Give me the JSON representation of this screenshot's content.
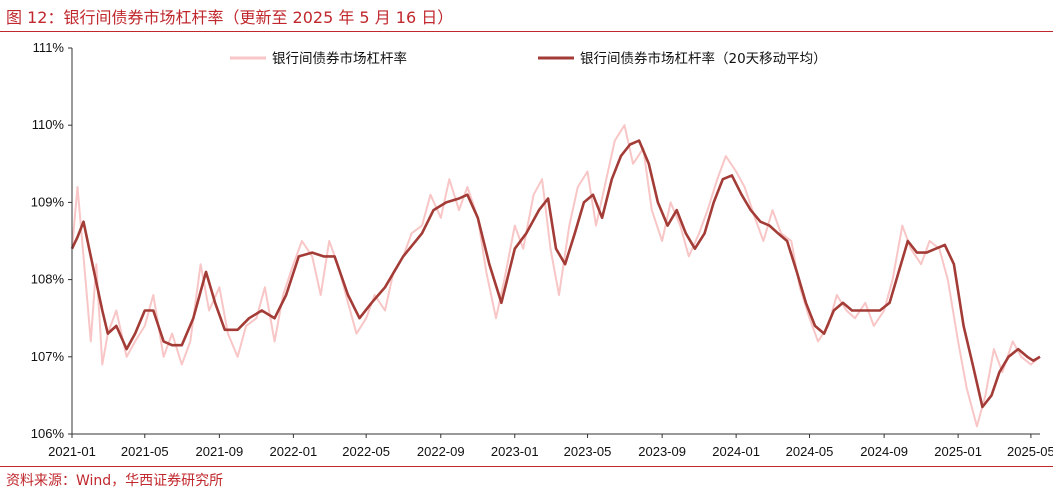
{
  "title": "图 12：银行间债券市场杠杆率（更新至 2025 年 5 月 16 日）",
  "source": "资料来源：Wind，华西证券研究所",
  "colors": {
    "accent": "#c0282d",
    "raw_line": "#f8c6c6",
    "ma_line": "#a33b36"
  },
  "chart_data": {
    "type": "line",
    "title": "",
    "xlabel": "",
    "ylabel": "",
    "ylim": [
      106,
      111
    ],
    "y_ticks": [
      "106%",
      "107%",
      "108%",
      "109%",
      "110%",
      "111%"
    ],
    "x_ticks": [
      "2021-01",
      "2021-05",
      "2021-09",
      "2022-01",
      "2022-05",
      "2022-09",
      "2023-01",
      "2023-05",
      "2023-09",
      "2024-01",
      "2024-05",
      "2024-09",
      "2025-01",
      "2025-05"
    ],
    "x_range": [
      "2021-01-01",
      "2025-05-16"
    ],
    "legend_position": "top",
    "series": [
      {
        "name": "银行间债券市场杠杆率",
        "role": "raw",
        "points": [
          [
            "2021-01-01",
            108.4
          ],
          [
            "2021-01-10",
            109.2
          ],
          [
            "2021-01-20",
            108.3
          ],
          [
            "2021-02-01",
            107.2
          ],
          [
            "2021-02-10",
            108.2
          ],
          [
            "2021-02-20",
            106.9
          ],
          [
            "2021-03-01",
            107.3
          ],
          [
            "2021-03-15",
            107.6
          ],
          [
            "2021-04-01",
            107.0
          ],
          [
            "2021-04-15",
            107.2
          ],
          [
            "2021-05-01",
            107.4
          ],
          [
            "2021-05-15",
            107.8
          ],
          [
            "2021-06-01",
            107.0
          ],
          [
            "2021-06-15",
            107.3
          ],
          [
            "2021-07-01",
            106.9
          ],
          [
            "2021-07-15",
            107.2
          ],
          [
            "2021-08-01",
            108.2
          ],
          [
            "2021-08-15",
            107.6
          ],
          [
            "2021-09-01",
            107.9
          ],
          [
            "2021-09-15",
            107.3
          ],
          [
            "2021-10-01",
            107.0
          ],
          [
            "2021-10-15",
            107.4
          ],
          [
            "2021-11-01",
            107.5
          ],
          [
            "2021-11-15",
            107.9
          ],
          [
            "2021-12-01",
            107.2
          ],
          [
            "2021-12-15",
            107.8
          ],
          [
            "2022-01-01",
            108.2
          ],
          [
            "2022-01-15",
            108.5
          ],
          [
            "2022-02-01",
            108.3
          ],
          [
            "2022-02-15",
            107.8
          ],
          [
            "2022-03-01",
            108.5
          ],
          [
            "2022-03-15",
            108.2
          ],
          [
            "2022-04-01",
            107.7
          ],
          [
            "2022-04-15",
            107.3
          ],
          [
            "2022-05-01",
            107.5
          ],
          [
            "2022-05-15",
            107.8
          ],
          [
            "2022-06-01",
            107.6
          ],
          [
            "2022-06-15",
            108.1
          ],
          [
            "2022-07-01",
            108.3
          ],
          [
            "2022-07-15",
            108.6
          ],
          [
            "2022-08-01",
            108.7
          ],
          [
            "2022-08-15",
            109.1
          ],
          [
            "2022-09-01",
            108.8
          ],
          [
            "2022-09-15",
            109.3
          ],
          [
            "2022-10-01",
            108.9
          ],
          [
            "2022-10-15",
            109.2
          ],
          [
            "2022-11-01",
            108.8
          ],
          [
            "2022-11-15",
            108.1
          ],
          [
            "2022-12-01",
            107.5
          ],
          [
            "2022-12-15",
            108.0
          ],
          [
            "2023-01-01",
            108.7
          ],
          [
            "2023-01-15",
            108.4
          ],
          [
            "2023-02-01",
            109.1
          ],
          [
            "2023-02-15",
            109.3
          ],
          [
            "2023-03-01",
            108.4
          ],
          [
            "2023-03-15",
            107.8
          ],
          [
            "2023-04-01",
            108.7
          ],
          [
            "2023-04-15",
            109.2
          ],
          [
            "2023-05-01",
            109.4
          ],
          [
            "2023-05-15",
            108.7
          ],
          [
            "2023-06-01",
            109.3
          ],
          [
            "2023-06-15",
            109.8
          ],
          [
            "2023-07-01",
            110.0
          ],
          [
            "2023-07-15",
            109.5
          ],
          [
            "2023-08-01",
            109.7
          ],
          [
            "2023-08-15",
            108.9
          ],
          [
            "2023-09-01",
            108.5
          ],
          [
            "2023-09-15",
            109.0
          ],
          [
            "2023-10-01",
            108.7
          ],
          [
            "2023-10-15",
            108.3
          ],
          [
            "2023-11-01",
            108.6
          ],
          [
            "2023-11-15",
            108.9
          ],
          [
            "2023-12-01",
            109.3
          ],
          [
            "2023-12-15",
            109.6
          ],
          [
            "2024-01-01",
            109.4
          ],
          [
            "2024-01-15",
            109.2
          ],
          [
            "2024-02-01",
            108.8
          ],
          [
            "2024-02-15",
            108.5
          ],
          [
            "2024-03-01",
            108.9
          ],
          [
            "2024-03-15",
            108.6
          ],
          [
            "2024-04-01",
            108.5
          ],
          [
            "2024-04-15",
            107.9
          ],
          [
            "2024-05-01",
            107.5
          ],
          [
            "2024-05-15",
            107.2
          ],
          [
            "2024-06-01",
            107.4
          ],
          [
            "2024-06-15",
            107.8
          ],
          [
            "2024-07-01",
            107.6
          ],
          [
            "2024-07-15",
            107.5
          ],
          [
            "2024-08-01",
            107.7
          ],
          [
            "2024-08-15",
            107.4
          ],
          [
            "2024-09-01",
            107.6
          ],
          [
            "2024-09-15",
            108.0
          ],
          [
            "2024-10-01",
            108.7
          ],
          [
            "2024-10-15",
            108.4
          ],
          [
            "2024-11-01",
            108.2
          ],
          [
            "2024-11-15",
            108.5
          ],
          [
            "2024-12-01",
            108.4
          ],
          [
            "2024-12-15",
            108.0
          ],
          [
            "2025-01-01",
            107.2
          ],
          [
            "2025-01-15",
            106.6
          ],
          [
            "2025-02-01",
            106.1
          ],
          [
            "2025-02-15",
            106.5
          ],
          [
            "2025-03-01",
            107.1
          ],
          [
            "2025-03-15",
            106.8
          ],
          [
            "2025-04-01",
            107.2
          ],
          [
            "2025-04-15",
            107.0
          ],
          [
            "2025-05-01",
            106.9
          ],
          [
            "2025-05-16",
            107.0
          ]
        ]
      },
      {
        "name": "银行间债券市场杠杆率（20天移动平均）",
        "role": "ma",
        "points": [
          [
            "2021-01-01",
            108.4
          ],
          [
            "2021-01-10",
            108.55
          ],
          [
            "2021-01-20",
            108.75
          ],
          [
            "2021-02-01",
            108.3
          ],
          [
            "2021-02-20",
            107.6
          ],
          [
            "2021-03-01",
            107.3
          ],
          [
            "2021-03-15",
            107.4
          ],
          [
            "2021-04-01",
            107.1
          ],
          [
            "2021-04-15",
            107.3
          ],
          [
            "2021-05-01",
            107.6
          ],
          [
            "2021-05-15",
            107.6
          ],
          [
            "2021-06-01",
            107.2
          ],
          [
            "2021-06-15",
            107.15
          ],
          [
            "2021-07-01",
            107.15
          ],
          [
            "2021-07-20",
            107.5
          ],
          [
            "2021-08-10",
            108.1
          ],
          [
            "2021-08-25",
            107.7
          ],
          [
            "2021-09-10",
            107.35
          ],
          [
            "2021-10-01",
            107.35
          ],
          [
            "2021-10-20",
            107.5
          ],
          [
            "2021-11-10",
            107.6
          ],
          [
            "2021-12-01",
            107.5
          ],
          [
            "2021-12-20",
            107.8
          ],
          [
            "2022-01-10",
            108.3
          ],
          [
            "2022-02-01",
            108.35
          ],
          [
            "2022-02-20",
            108.3
          ],
          [
            "2022-03-10",
            108.3
          ],
          [
            "2022-04-01",
            107.8
          ],
          [
            "2022-04-20",
            107.5
          ],
          [
            "2022-05-10",
            107.7
          ],
          [
            "2022-06-01",
            107.9
          ],
          [
            "2022-07-01",
            108.3
          ],
          [
            "2022-08-01",
            108.6
          ],
          [
            "2022-08-20",
            108.9
          ],
          [
            "2022-09-10",
            109.0
          ],
          [
            "2022-10-01",
            109.05
          ],
          [
            "2022-10-15",
            109.1
          ],
          [
            "2022-11-01",
            108.8
          ],
          [
            "2022-11-20",
            108.2
          ],
          [
            "2022-12-10",
            107.7
          ],
          [
            "2023-01-01",
            108.4
          ],
          [
            "2023-01-20",
            108.6
          ],
          [
            "2023-02-10",
            108.9
          ],
          [
            "2023-02-25",
            109.05
          ],
          [
            "2023-03-10",
            108.4
          ],
          [
            "2023-03-25",
            108.2
          ],
          [
            "2023-04-10",
            108.6
          ],
          [
            "2023-04-25",
            109.0
          ],
          [
            "2023-05-10",
            109.1
          ],
          [
            "2023-05-25",
            108.8
          ],
          [
            "2023-06-10",
            109.3
          ],
          [
            "2023-06-25",
            109.6
          ],
          [
            "2023-07-10",
            109.75
          ],
          [
            "2023-07-25",
            109.8
          ],
          [
            "2023-08-10",
            109.5
          ],
          [
            "2023-08-25",
            109.0
          ],
          [
            "2023-09-10",
            108.7
          ],
          [
            "2023-09-25",
            108.9
          ],
          [
            "2023-10-10",
            108.6
          ],
          [
            "2023-10-25",
            108.4
          ],
          [
            "2023-11-10",
            108.6
          ],
          [
            "2023-11-25",
            109.0
          ],
          [
            "2023-12-10",
            109.3
          ],
          [
            "2023-12-25",
            109.35
          ],
          [
            "2024-01-10",
            109.1
          ],
          [
            "2024-01-25",
            108.9
          ],
          [
            "2024-02-10",
            108.75
          ],
          [
            "2024-02-25",
            108.7
          ],
          [
            "2024-03-10",
            108.6
          ],
          [
            "2024-03-25",
            108.5
          ],
          [
            "2024-04-10",
            108.1
          ],
          [
            "2024-04-25",
            107.7
          ],
          [
            "2024-05-10",
            107.4
          ],
          [
            "2024-05-25",
            107.3
          ],
          [
            "2024-06-10",
            107.6
          ],
          [
            "2024-06-25",
            107.7
          ],
          [
            "2024-07-10",
            107.6
          ],
          [
            "2024-07-25",
            107.6
          ],
          [
            "2024-08-10",
            107.6
          ],
          [
            "2024-08-25",
            107.6
          ],
          [
            "2024-09-10",
            107.7
          ],
          [
            "2024-09-25",
            108.1
          ],
          [
            "2024-10-10",
            108.5
          ],
          [
            "2024-10-25",
            108.35
          ],
          [
            "2024-11-10",
            108.35
          ],
          [
            "2024-11-25",
            108.4
          ],
          [
            "2024-12-10",
            108.45
          ],
          [
            "2024-12-25",
            108.2
          ],
          [
            "2025-01-10",
            107.4
          ],
          [
            "2025-01-25",
            106.9
          ],
          [
            "2025-02-10",
            106.35
          ],
          [
            "2025-02-25",
            106.5
          ],
          [
            "2025-03-10",
            106.8
          ],
          [
            "2025-03-25",
            107.0
          ],
          [
            "2025-04-10",
            107.1
          ],
          [
            "2025-04-25",
            107.0
          ],
          [
            "2025-05-05",
            106.95
          ],
          [
            "2025-05-16",
            107.0
          ]
        ]
      }
    ]
  }
}
